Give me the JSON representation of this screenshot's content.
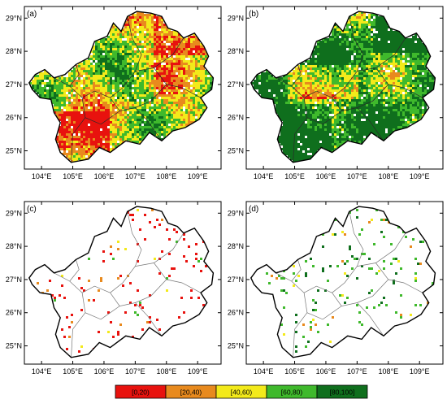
{
  "figure": {
    "panels": [
      {
        "id": "a",
        "label": "(a)",
        "style": "dense",
        "bias": "low"
      },
      {
        "id": "b",
        "label": "(b)",
        "style": "dense",
        "bias": "high"
      },
      {
        "id": "c",
        "label": "(c)",
        "style": "sparse",
        "bias": "low"
      },
      {
        "id": "d",
        "label": "(d)",
        "style": "sparse",
        "bias": "high"
      }
    ],
    "x_ticks": [
      "104°E",
      "105°E",
      "106°E",
      "107°E",
      "108°E",
      "109°E"
    ],
    "y_ticks": [
      "29°N",
      "28°N",
      "27°N",
      "26°N",
      "25°N"
    ],
    "legend": {
      "bins": [
        {
          "label": "[0,20)",
          "color": "#e8120e"
        },
        {
          "label": "[20,40)",
          "color": "#e88a1e"
        },
        {
          "label": "[40,60)",
          "color": "#f3ea1a"
        },
        {
          "label": "[60,80)",
          "color": "#3fb92c"
        },
        {
          "label": "[80,100]",
          "color": "#0f6f1d"
        }
      ]
    }
  }
}
